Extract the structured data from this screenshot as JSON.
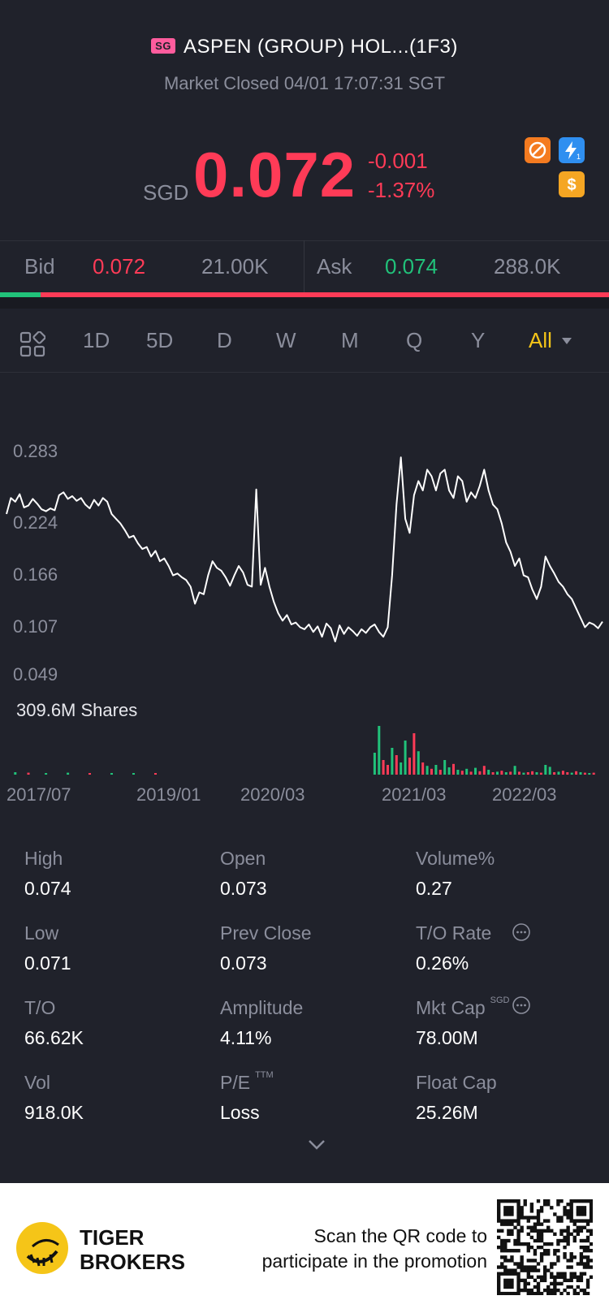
{
  "header": {
    "market_badge": "SG",
    "stock_name": "ASPEN (GROUP) HOL...(1F3)",
    "status": "Market Closed 04/01 17:07:31 SGT",
    "currency": "SGD",
    "price": "0.072",
    "change": "-0.001",
    "change_pct": "-1.37%",
    "accent_down": "#ff3b57",
    "accent_up": "#21c27a"
  },
  "bid_ask": {
    "bid_label": "Bid",
    "bid_price": "0.072",
    "bid_size": "21.00K",
    "ask_label": "Ask",
    "ask_price": "0.074",
    "ask_size": "288.0K",
    "bid_ratio": 0.066
  },
  "tabs": [
    "1D",
    "5D",
    "D",
    "W",
    "M",
    "Q",
    "Y",
    "All"
  ],
  "active_tab": "All",
  "chart_data": {
    "type": "line",
    "y_ticks": [
      "0.283",
      "0.224",
      "0.166",
      "0.107",
      "0.049"
    ],
    "ylim": [
      0.049,
      0.283
    ],
    "x_ticks": [
      "2017/07",
      "2019/01",
      "2020/03",
      "2021/03",
      "2022/03"
    ],
    "volume_label": "309.6M Shares",
    "series": [
      {
        "values": [
          0.215,
          0.232,
          0.228,
          0.236,
          0.222,
          0.224,
          0.231,
          0.226,
          0.22,
          0.218,
          0.221,
          0.219,
          0.235,
          0.238,
          0.231,
          0.234,
          0.229,
          0.232,
          0.225,
          0.221,
          0.23,
          0.224,
          0.232,
          0.228,
          0.215,
          0.21,
          0.205,
          0.198,
          0.19,
          0.192,
          0.184,
          0.178,
          0.18,
          0.17,
          0.176,
          0.165,
          0.168,
          0.16,
          0.15,
          0.152,
          0.148,
          0.145,
          0.138,
          0.12,
          0.132,
          0.13,
          0.15,
          0.165,
          0.158,
          0.155,
          0.148,
          0.139,
          0.15,
          0.16,
          0.153,
          0.14,
          0.138,
          0.241,
          0.14,
          0.158,
          0.138,
          0.122,
          0.11,
          0.102,
          0.108,
          0.098,
          0.1,
          0.095,
          0.093,
          0.098,
          0.09,
          0.096,
          0.085,
          0.099,
          0.094,
          0.08,
          0.097,
          0.088,
          0.095,
          0.091,
          0.086,
          0.093,
          0.089,
          0.095,
          0.098,
          0.09,
          0.085,
          0.095,
          0.15,
          0.225,
          0.275,
          0.21,
          0.195,
          0.235,
          0.25,
          0.24,
          0.262,
          0.255,
          0.24,
          0.258,
          0.262,
          0.24,
          0.232,
          0.255,
          0.25,
          0.228,
          0.238,
          0.232,
          0.245,
          0.262,
          0.24,
          0.225,
          0.22,
          0.205,
          0.185,
          0.175,
          0.16,
          0.168,
          0.15,
          0.148,
          0.135,
          0.125,
          0.138,
          0.17,
          0.16,
          0.152,
          0.143,
          0.138,
          0.13,
          0.125,
          0.115,
          0.105,
          0.095,
          0.1,
          0.098,
          0.094,
          0.101
        ]
      }
    ],
    "volume": [
      {
        "i": 2,
        "v": 0.05,
        "c": "up"
      },
      {
        "i": 5,
        "v": 0.04,
        "c": "down"
      },
      {
        "i": 9,
        "v": 0.03,
        "c": "up"
      },
      {
        "i": 14,
        "v": 0.04,
        "c": "up"
      },
      {
        "i": 19,
        "v": 0.03,
        "c": "down"
      },
      {
        "i": 24,
        "v": 0.03,
        "c": "up"
      },
      {
        "i": 29,
        "v": 0.03,
        "c": "up"
      },
      {
        "i": 34,
        "v": 0.02,
        "c": "down"
      },
      {
        "i": 84,
        "v": 0.45,
        "c": "up"
      },
      {
        "i": 85,
        "v": 1.0,
        "c": "up"
      },
      {
        "i": 86,
        "v": 0.3,
        "c": "down"
      },
      {
        "i": 87,
        "v": 0.2,
        "c": "down"
      },
      {
        "i": 88,
        "v": 0.55,
        "c": "up"
      },
      {
        "i": 89,
        "v": 0.4,
        "c": "down"
      },
      {
        "i": 90,
        "v": 0.25,
        "c": "up"
      },
      {
        "i": 91,
        "v": 0.7,
        "c": "up"
      },
      {
        "i": 92,
        "v": 0.35,
        "c": "down"
      },
      {
        "i": 93,
        "v": 0.85,
        "c": "down"
      },
      {
        "i": 94,
        "v": 0.48,
        "c": "up"
      },
      {
        "i": 95,
        "v": 0.25,
        "c": "down"
      },
      {
        "i": 96,
        "v": 0.18,
        "c": "up"
      },
      {
        "i": 97,
        "v": 0.12,
        "c": "down"
      },
      {
        "i": 98,
        "v": 0.2,
        "c": "up"
      },
      {
        "i": 99,
        "v": 0.1,
        "c": "down"
      },
      {
        "i": 100,
        "v": 0.3,
        "c": "up"
      },
      {
        "i": 101,
        "v": 0.15,
        "c": "up"
      },
      {
        "i": 102,
        "v": 0.22,
        "c": "down"
      },
      {
        "i": 103,
        "v": 0.1,
        "c": "up"
      },
      {
        "i": 104,
        "v": 0.08,
        "c": "down"
      },
      {
        "i": 105,
        "v": 0.12,
        "c": "up"
      },
      {
        "i": 106,
        "v": 0.06,
        "c": "down"
      },
      {
        "i": 107,
        "v": 0.14,
        "c": "up"
      },
      {
        "i": 108,
        "v": 0.07,
        "c": "down"
      },
      {
        "i": 109,
        "v": 0.18,
        "c": "down"
      },
      {
        "i": 110,
        "v": 0.1,
        "c": "up"
      },
      {
        "i": 111,
        "v": 0.05,
        "c": "down"
      },
      {
        "i": 112,
        "v": 0.06,
        "c": "up"
      },
      {
        "i": 113,
        "v": 0.08,
        "c": "down"
      },
      {
        "i": 114,
        "v": 0.05,
        "c": "up"
      },
      {
        "i": 115,
        "v": 0.06,
        "c": "down"
      },
      {
        "i": 116,
        "v": 0.18,
        "c": "up"
      },
      {
        "i": 117,
        "v": 0.06,
        "c": "down"
      },
      {
        "i": 118,
        "v": 0.04,
        "c": "up"
      },
      {
        "i": 119,
        "v": 0.05,
        "c": "down"
      },
      {
        "i": 120,
        "v": 0.07,
        "c": "down"
      },
      {
        "i": 121,
        "v": 0.05,
        "c": "up"
      },
      {
        "i": 122,
        "v": 0.04,
        "c": "down"
      },
      {
        "i": 123,
        "v": 0.2,
        "c": "up"
      },
      {
        "i": 124,
        "v": 0.16,
        "c": "up"
      },
      {
        "i": 125,
        "v": 0.05,
        "c": "down"
      },
      {
        "i": 126,
        "v": 0.06,
        "c": "up"
      },
      {
        "i": 127,
        "v": 0.08,
        "c": "down"
      },
      {
        "i": 128,
        "v": 0.05,
        "c": "down"
      },
      {
        "i": 129,
        "v": 0.04,
        "c": "up"
      },
      {
        "i": 130,
        "v": 0.07,
        "c": "down"
      },
      {
        "i": 131,
        "v": 0.05,
        "c": "up"
      },
      {
        "i": 132,
        "v": 0.04,
        "c": "down"
      },
      {
        "i": 133,
        "v": 0.03,
        "c": "up"
      },
      {
        "i": 134,
        "v": 0.04,
        "c": "down"
      }
    ]
  },
  "stats": [
    {
      "label": "High",
      "value": "0.074"
    },
    {
      "label": "Open",
      "value": "0.073"
    },
    {
      "label": "Volume%",
      "value": "0.27"
    },
    {
      "label": "Low",
      "value": "0.071"
    },
    {
      "label": "Prev Close",
      "value": "0.073"
    },
    {
      "label": "T/O Rate",
      "value": "0.26%"
    },
    {
      "label": "T/O",
      "value": "66.62K"
    },
    {
      "label": "Amplitude",
      "value": "4.11%"
    },
    {
      "label": "Mkt Cap",
      "value": "78.00M",
      "sup": "SGD"
    },
    {
      "label": "Vol",
      "value": "918.0K"
    },
    {
      "label": "P/E",
      "value": "Loss",
      "sup": "TTM"
    },
    {
      "label": "Float Cap",
      "value": "25.26M"
    }
  ],
  "footer": {
    "brand_line1": "TIGER",
    "brand_line2": "BROKERS",
    "promo_line1": "Scan the QR code to",
    "promo_line2": "participate in the promotion"
  },
  "icons": {
    "no_short": "no-short-icon",
    "lightning": "level1-lightning-icon",
    "dollar": "dollar-icon",
    "grid": "chart-style-grid-icon",
    "dropdown": "dropdown-caret-icon",
    "info": "info-icon",
    "expand": "chevron-down-icon"
  }
}
